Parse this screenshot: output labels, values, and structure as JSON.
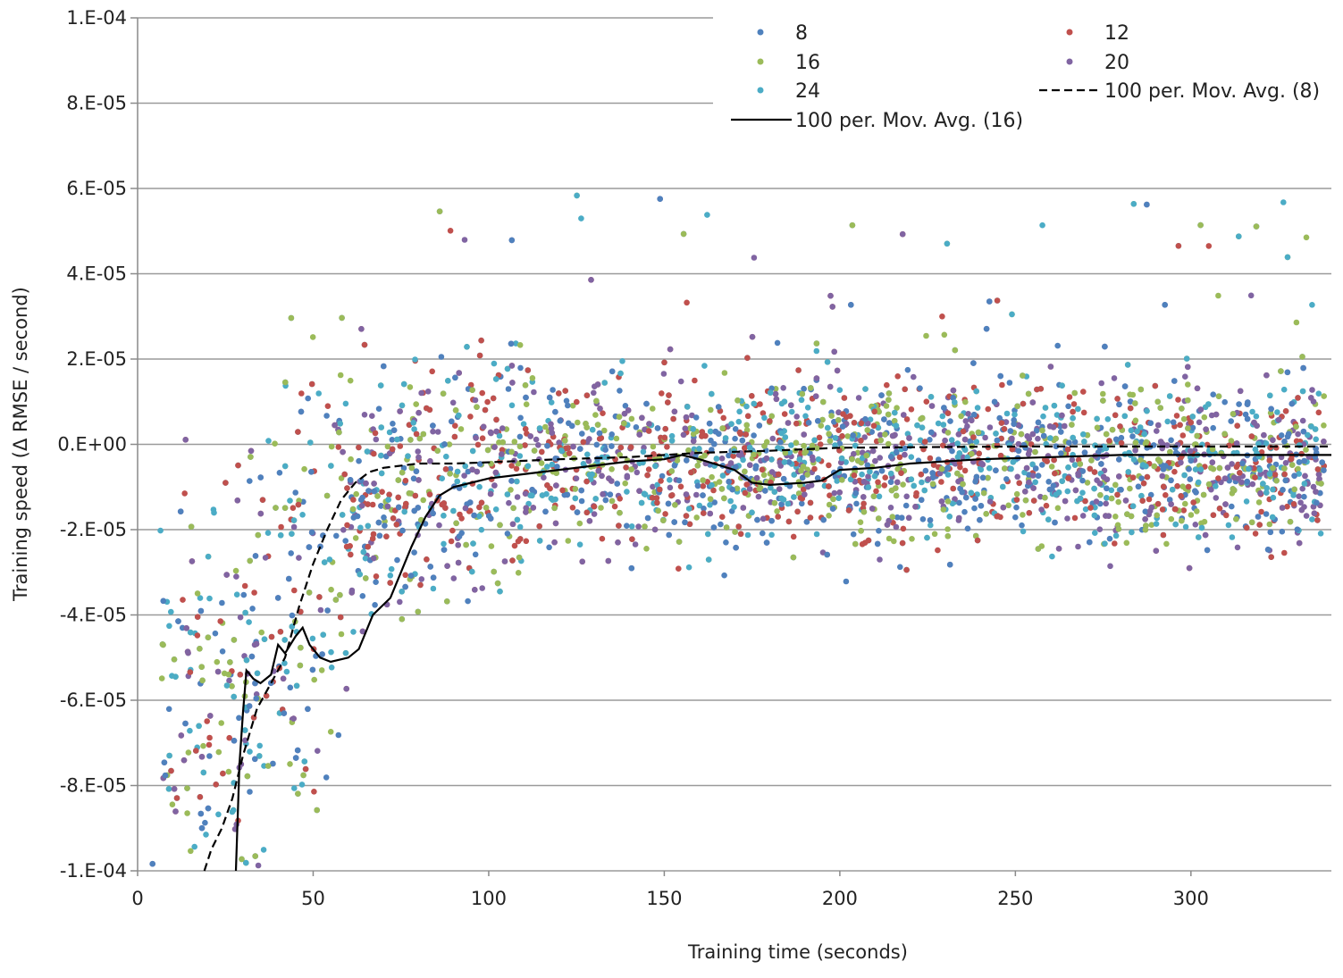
{
  "chart_data": {
    "type": "scatter",
    "title": "",
    "xlabel": "Training time (seconds)",
    "ylabel": "Training speed (Δ RMSE / second)",
    "xlim": [
      0,
      340
    ],
    "ylim": [
      -0.0001,
      0.0001
    ],
    "x_ticks": [
      0,
      50,
      100,
      150,
      200,
      250,
      300
    ],
    "x_tick_labels": [
      "0",
      "50",
      "100",
      "150",
      "200",
      "250",
      "300"
    ],
    "y_ticks": [
      0.0001,
      8e-05,
      6e-05,
      4e-05,
      2e-05,
      0,
      -2e-05,
      -4e-05,
      -6e-05,
      -8e-05,
      -0.0001
    ],
    "y_tick_labels": [
      "1.E-04",
      "8.E-05",
      "6.E-05",
      "4.E-05",
      "2.E-05",
      "0.E+00",
      "-2.E-05",
      "-4.E-05",
      "-6.E-05",
      "-8.E-05",
      "-1.E-04"
    ],
    "grid": "horizontal",
    "legend_placement": "top-right",
    "series": [
      {
        "name": "8",
        "marker": "dot",
        "color": "#4f81bd"
      },
      {
        "name": "12",
        "marker": "dot",
        "color": "#c0504d"
      },
      {
        "name": "16",
        "marker": "dot",
        "color": "#9bbb59"
      },
      {
        "name": "20",
        "marker": "dot",
        "color": "#8064a2"
      },
      {
        "name": "24",
        "marker": "dot",
        "color": "#4bacc6"
      }
    ],
    "moving_averages": [
      {
        "name": "100 per. Mov. Avg. (16)",
        "style": "solid",
        "color": "#000000",
        "points": [
          [
            28,
            -0.0001
          ],
          [
            29,
            -7.5e-05
          ],
          [
            30,
            -6.3e-05
          ],
          [
            31,
            -5.3e-05
          ],
          [
            33,
            -5.5e-05
          ],
          [
            35,
            -5.6e-05
          ],
          [
            38,
            -5.4e-05
          ],
          [
            40,
            -4.7e-05
          ],
          [
            42,
            -4.9e-05
          ],
          [
            45,
            -4.5e-05
          ],
          [
            47,
            -4.3e-05
          ],
          [
            49,
            -4.7e-05
          ],
          [
            52,
            -5e-05
          ],
          [
            55,
            -5.1e-05
          ],
          [
            60,
            -5e-05
          ],
          [
            63,
            -4.8e-05
          ],
          [
            67,
            -4e-05
          ],
          [
            72,
            -3.6e-05
          ],
          [
            75,
            -3e-05
          ],
          [
            78,
            -2.4e-05
          ],
          [
            82,
            -1.7e-05
          ],
          [
            86,
            -1.2e-05
          ],
          [
            90,
            -1e-05
          ],
          [
            95,
            -9e-06
          ],
          [
            100,
            -8e-06
          ],
          [
            110,
            -7e-06
          ],
          [
            120,
            -6e-06
          ],
          [
            130,
            -5e-06
          ],
          [
            140,
            -4e-06
          ],
          [
            150,
            -3.5e-06
          ],
          [
            155,
            -2.5e-06
          ],
          [
            160,
            -3.5e-06
          ],
          [
            170,
            -6e-06
          ],
          [
            175,
            -9e-06
          ],
          [
            180,
            -9.5e-06
          ],
          [
            190,
            -9e-06
          ],
          [
            195,
            -8.5e-06
          ],
          [
            200,
            -6e-06
          ],
          [
            210,
            -5.5e-06
          ],
          [
            220,
            -4.5e-06
          ],
          [
            240,
            -3.5e-06
          ],
          [
            260,
            -3e-06
          ],
          [
            280,
            -2.5e-06
          ],
          [
            300,
            -2.5e-06
          ],
          [
            320,
            -2.5e-06
          ],
          [
            340,
            -2.5e-06
          ]
        ]
      },
      {
        "name": "100 per. Mov. Avg. (8)",
        "style": "dashed",
        "color": "#000000",
        "points": [
          [
            19,
            -0.0001
          ],
          [
            21,
            -9.5e-05
          ],
          [
            24,
            -9e-05
          ],
          [
            27,
            -8.3e-05
          ],
          [
            30,
            -7.3e-05
          ],
          [
            34,
            -6.2e-05
          ],
          [
            38,
            -5.6e-05
          ],
          [
            42,
            -5e-05
          ],
          [
            46,
            -3.8e-05
          ],
          [
            50,
            -2.8e-05
          ],
          [
            54,
            -2e-05
          ],
          [
            58,
            -1.3e-05
          ],
          [
            62,
            -9e-06
          ],
          [
            66,
            -6.5e-06
          ],
          [
            70,
            -5.5e-06
          ],
          [
            80,
            -4.5e-06
          ],
          [
            90,
            -4.5e-06
          ],
          [
            100,
            -4.2e-06
          ],
          [
            120,
            -3.5e-06
          ],
          [
            140,
            -3e-06
          ],
          [
            160,
            -2e-06
          ],
          [
            180,
            -1.5e-06
          ],
          [
            200,
            -8e-07
          ],
          [
            250,
            -5e-07
          ],
          [
            300,
            -5e-07
          ],
          [
            340,
            -5e-07
          ]
        ]
      }
    ]
  },
  "legend": {
    "items": [
      {
        "label": "8",
        "kind": "dot",
        "color": "#4f81bd"
      },
      {
        "label": "12",
        "kind": "dot",
        "color": "#c0504d"
      },
      {
        "label": "16",
        "kind": "dot",
        "color": "#9bbb59"
      },
      {
        "label": "20",
        "kind": "dot",
        "color": "#8064a2"
      },
      {
        "label": "24",
        "kind": "dot",
        "color": "#4bacc6"
      },
      {
        "label": "100 per. Mov. Avg. (8)",
        "kind": "dashed",
        "color": "#000000"
      },
      {
        "label": "100 per. Mov. Avg. (16)",
        "kind": "solid",
        "color": "#000000"
      }
    ]
  }
}
